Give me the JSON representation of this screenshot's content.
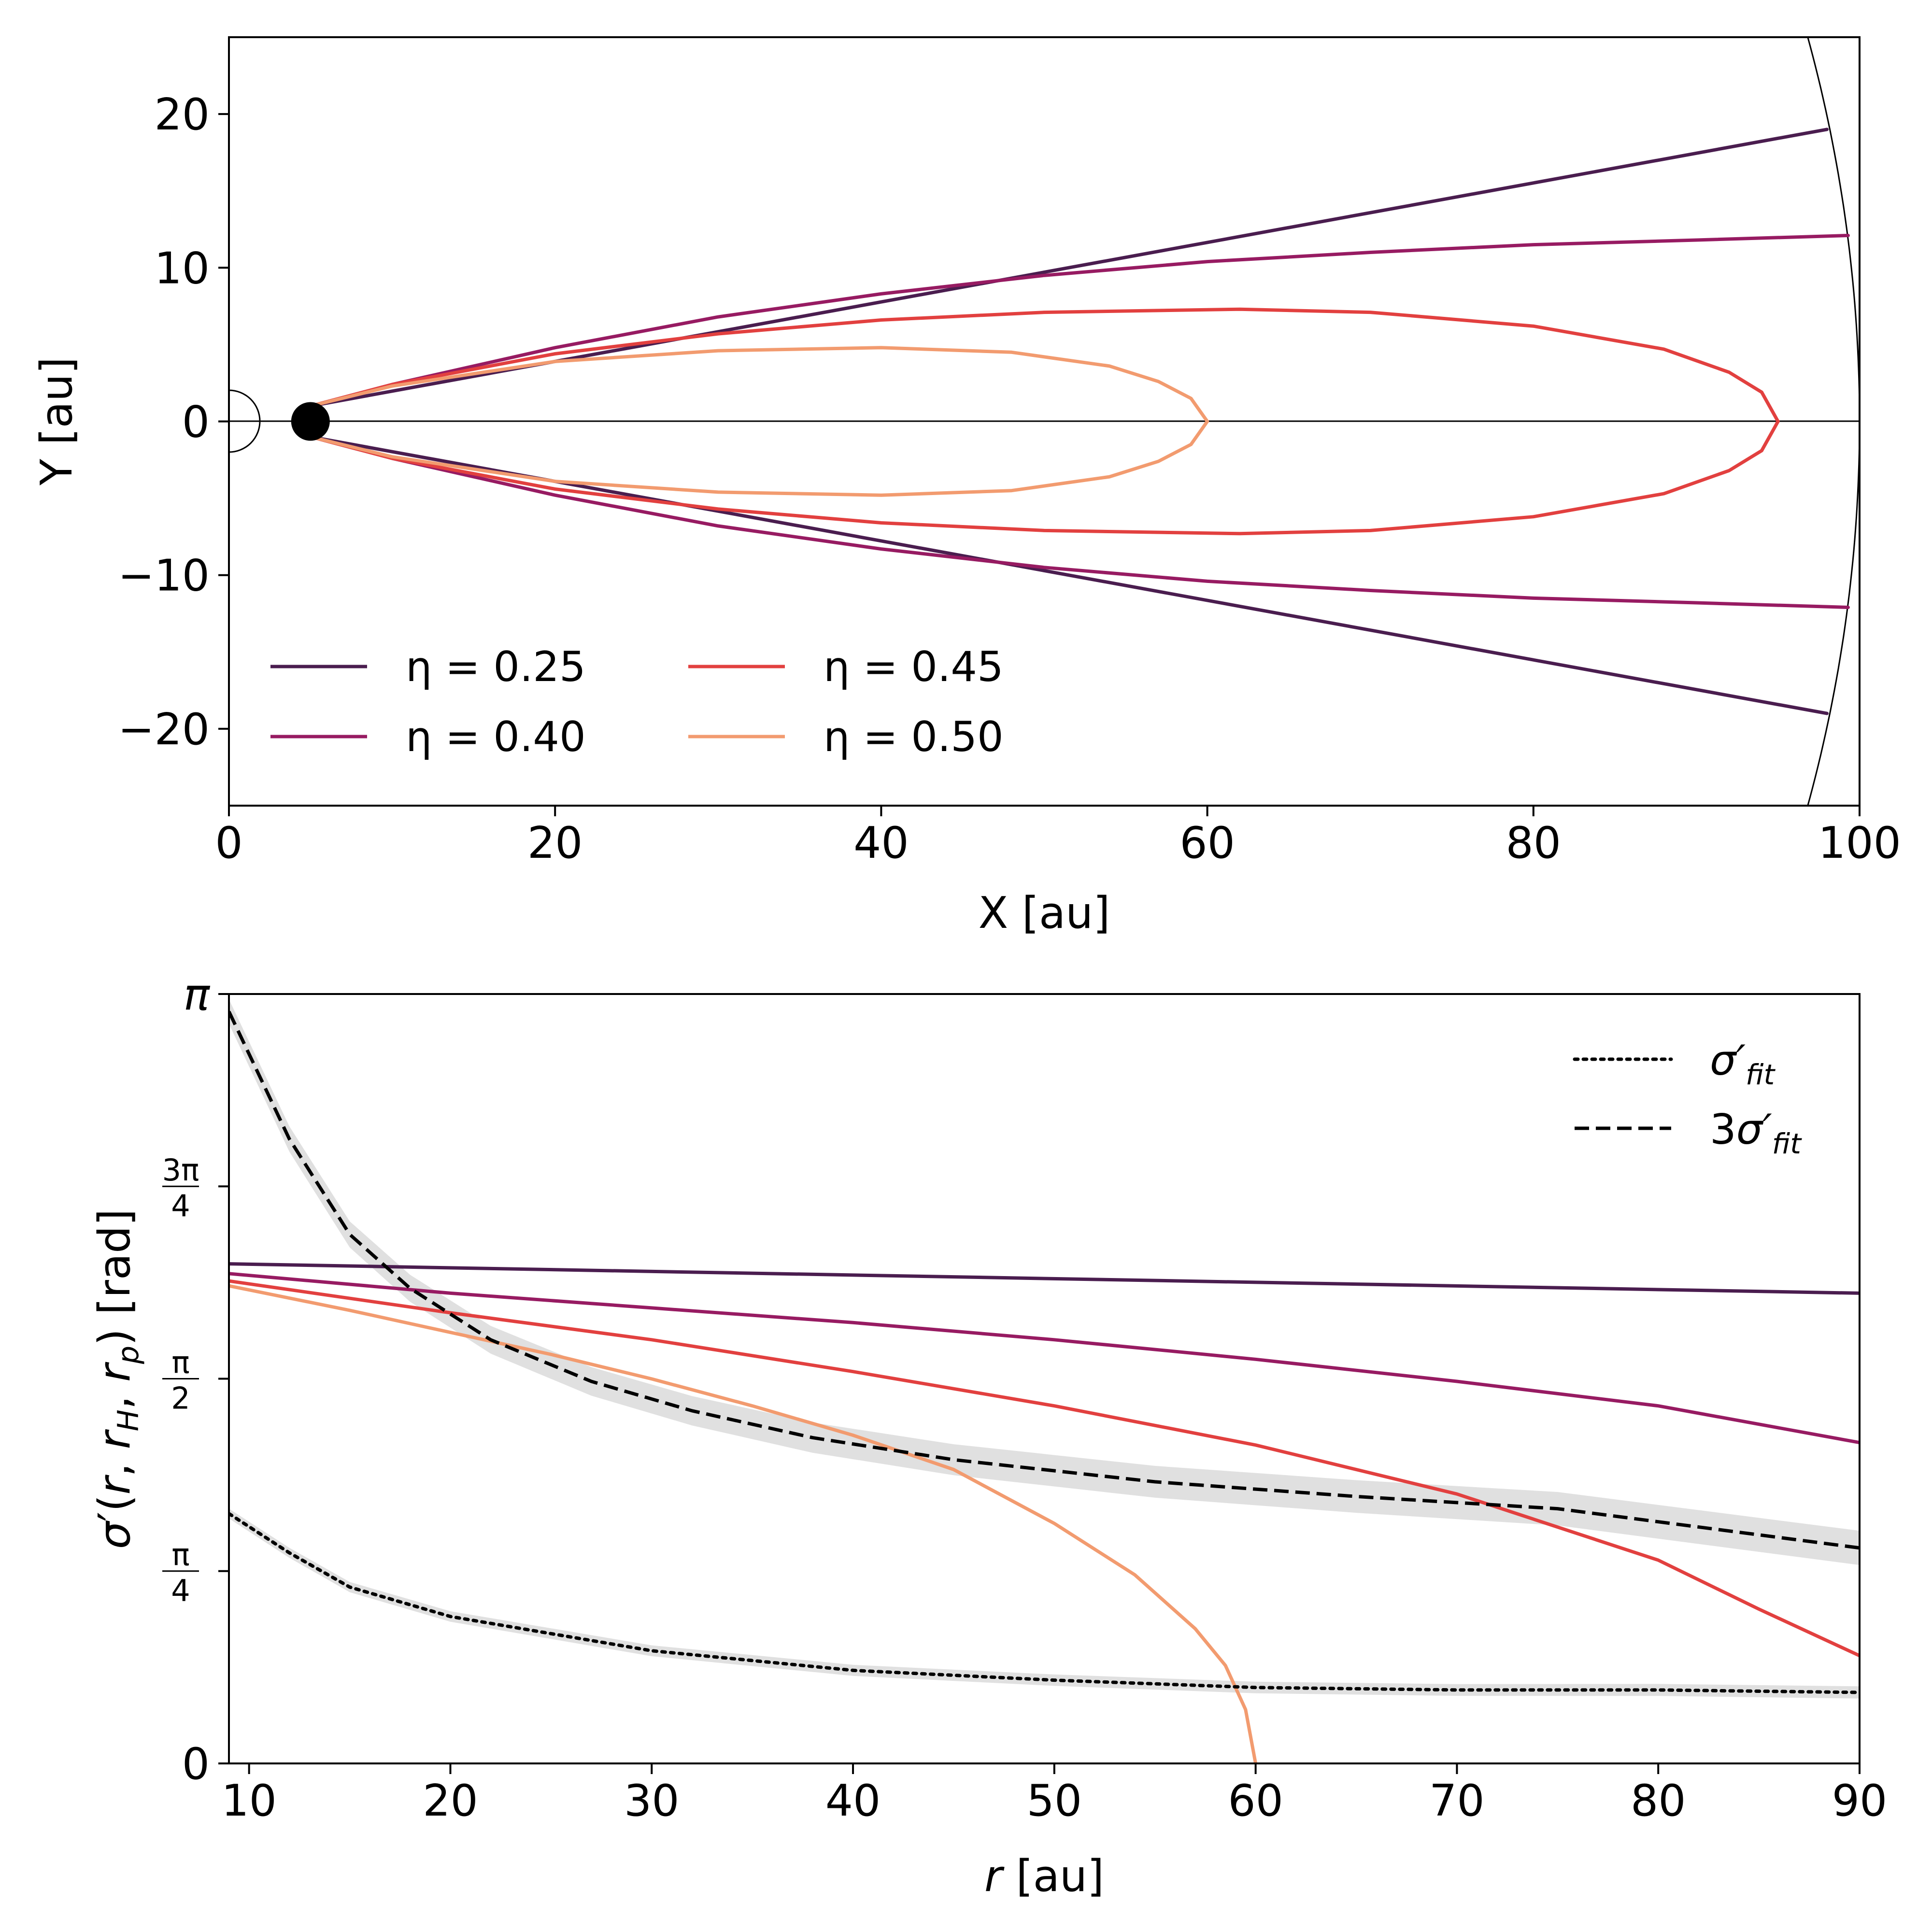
{
  "chart_data": [
    {
      "type": "line",
      "panel": "top",
      "title": "",
      "xlabel": "X [au]",
      "ylabel": "Y [au]",
      "xlim": [
        0,
        100
      ],
      "ylim": [
        -25,
        25
      ],
      "xticks": [
        "0",
        "20",
        "40",
        "60",
        "80",
        "100"
      ],
      "yticks": [
        "20",
        "10",
        "0",
        "−10",
        "−20"
      ],
      "planet": {
        "x": 5,
        "y": 0
      },
      "boundary_radius": 100,
      "legend_placement": "lower-left",
      "series": [
        {
          "name": "η = 0.25",
          "eta": 0.25,
          "color": "#4a1d4f",
          "x": [
            5,
            98
          ],
          "y": [
            1,
            19
          ]
        },
        {
          "name": "η = 0.40",
          "eta": 0.4,
          "color": "#971b62",
          "x": [
            5,
            10,
            20,
            30,
            40,
            50,
            60,
            70,
            80,
            90,
            99.3
          ],
          "y": [
            1,
            2.4,
            4.8,
            6.8,
            8.3,
            9.5,
            10.4,
            11.0,
            11.5,
            11.8,
            12.1
          ]
        },
        {
          "name": "η = 0.45",
          "eta": 0.45,
          "color": "#e2403f",
          "x": [
            5,
            10,
            20,
            30,
            40,
            50,
            62,
            70,
            80,
            88,
            92,
            94,
            95
          ],
          "y": [
            1,
            2.4,
            4.4,
            5.7,
            6.6,
            7.1,
            7.3,
            7.1,
            6.2,
            4.7,
            3.2,
            1.9,
            0
          ]
        },
        {
          "name": "η = 0.50",
          "eta": 0.5,
          "color": "#f29b6f",
          "x": [
            5,
            10,
            20,
            30,
            40,
            48,
            54,
            57,
            59,
            60
          ],
          "y": [
            1,
            2.3,
            3.9,
            4.6,
            4.8,
            4.5,
            3.6,
            2.6,
            1.5,
            0
          ]
        }
      ]
    },
    {
      "type": "line",
      "panel": "bottom",
      "title": "",
      "xlabel": "r  [au]",
      "ylabel": "σ′(r, r_H, r_p) [rad]",
      "xlim": [
        9,
        90
      ],
      "ylim": [
        0,
        3.14159
      ],
      "xticks": [
        "10",
        "20",
        "30",
        "40",
        "50",
        "60",
        "70",
        "80",
        "90"
      ],
      "yticks": [
        {
          "value": 0,
          "label": "0"
        },
        {
          "value": 0.7854,
          "label_num": "π",
          "label_den": "4"
        },
        {
          "value": 1.5708,
          "label_num": "π",
          "label_den": "2"
        },
        {
          "value": 2.3562,
          "label_num": "3π",
          "label_den": "4"
        },
        {
          "value": 3.14159,
          "label": "π"
        }
      ],
      "legend_placement": "top-right",
      "legend": [
        {
          "label": "σ′",
          "sub": "fit",
          "style": "dotted"
        },
        {
          "label": "3σ′",
          "sub": "fit",
          "style": "dashed"
        }
      ],
      "series": [
        {
          "name": "η = 0.25",
          "color": "#4a1d4f",
          "style": "solid",
          "x": [
            9,
            90
          ],
          "y": [
            2.04,
            1.92
          ]
        },
        {
          "name": "η = 0.40",
          "color": "#971b62",
          "style": "solid",
          "x": [
            9,
            20,
            30,
            40,
            50,
            60,
            70,
            80,
            90
          ],
          "y": [
            2.0,
            1.92,
            1.86,
            1.8,
            1.73,
            1.65,
            1.56,
            1.46,
            1.31
          ]
        },
        {
          "name": "η = 0.45",
          "color": "#e2403f",
          "style": "solid",
          "x": [
            9,
            20,
            30,
            40,
            50,
            60,
            70,
            80,
            85,
            90
          ],
          "y": [
            1.97,
            1.84,
            1.73,
            1.6,
            1.46,
            1.3,
            1.1,
            0.83,
            0.63,
            0.44
          ]
        },
        {
          "name": "η = 0.50",
          "color": "#f29b6f",
          "style": "solid",
          "x": [
            9,
            15,
            20,
            25,
            30,
            35,
            40,
            45,
            50,
            54,
            57,
            58.5,
            59.5,
            60
          ],
          "y": [
            1.95,
            1.85,
            1.76,
            1.67,
            1.57,
            1.46,
            1.34,
            1.2,
            0.98,
            0.77,
            0.55,
            0.4,
            0.22,
            0
          ]
        },
        {
          "name": "3σ′fit",
          "color": "#000000",
          "style": "dashed",
          "x": [
            9,
            12,
            15,
            18,
            22,
            27,
            32,
            38,
            45,
            55,
            65,
            75,
            90
          ],
          "y": [
            3.07,
            2.55,
            2.16,
            1.94,
            1.73,
            1.56,
            1.44,
            1.33,
            1.24,
            1.15,
            1.09,
            1.04,
            0.88
          ]
        },
        {
          "name": "σ′fit",
          "color": "#000000",
          "style": "dotted",
          "x": [
            9,
            12,
            15,
            20,
            25,
            30,
            40,
            50,
            60,
            70,
            80,
            90
          ],
          "y": [
            1.02,
            0.86,
            0.72,
            0.6,
            0.53,
            0.46,
            0.38,
            0.34,
            0.31,
            0.3,
            0.3,
            0.29
          ]
        }
      ]
    }
  ]
}
